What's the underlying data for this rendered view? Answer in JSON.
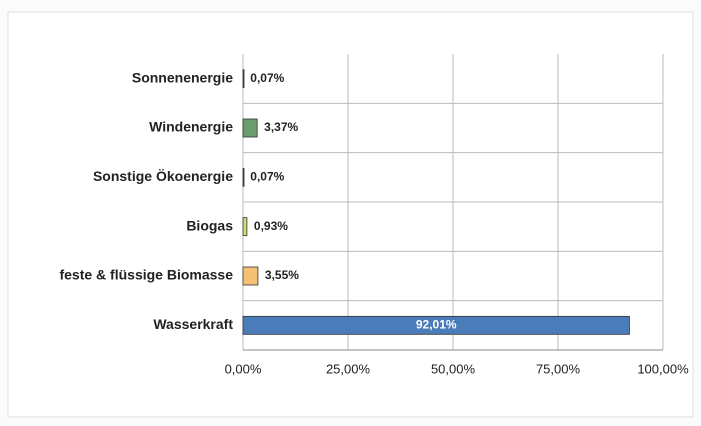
{
  "chart_data": {
    "type": "barh",
    "categories": [
      "Sonnenenergie",
      "Windenergie",
      "Sonstige Ökoenergie",
      "Biogas",
      "feste & flüssige Biomasse",
      "Wasserkraft"
    ],
    "values": [
      0.07,
      3.37,
      0.07,
      0.93,
      3.55,
      92.01
    ],
    "value_labels": [
      "0,07%",
      "3,37%",
      "0,07%",
      "0,93%",
      "3,55%",
      "92,01%"
    ],
    "colors": [
      "#3a4a6a",
      "#6b9e6e",
      "#3a4a6a",
      "#cfdc78",
      "#f3c274",
      "#4a7cb9"
    ],
    "xlim": [
      0,
      100
    ],
    "xticks": [
      {
        "value": 0,
        "label": "0,00%"
      },
      {
        "value": 25,
        "label": "25,00%"
      },
      {
        "value": 50,
        "label": "50,00%"
      },
      {
        "value": 75,
        "label": "75,00%"
      },
      {
        "value": 100,
        "label": "100,00%"
      }
    ],
    "grid": true
  }
}
